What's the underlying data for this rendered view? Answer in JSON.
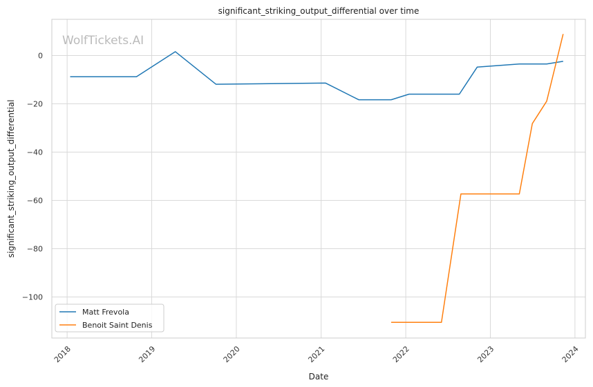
{
  "watermark": "WolfTickets.AI",
  "chart_data": {
    "type": "line",
    "title": "significant_striking_output_differential over time",
    "xlabel": "Date",
    "ylabel": "significant_striking_output_differential",
    "xlim": [
      "2017-10-27",
      "2024-02-15"
    ],
    "ylim": [
      -117,
      15
    ],
    "x_ticks": [
      "2018",
      "2019",
      "2020",
      "2021",
      "2022",
      "2023",
      "2024"
    ],
    "y_ticks": [
      0,
      -20,
      -40,
      -60,
      -80,
      -100
    ],
    "grid": true,
    "legend": "lower-left",
    "series": [
      {
        "name": "Matt Frevola",
        "color": "#1f77b4",
        "points": [
          {
            "x": "2018-01-14",
            "y": -8.8
          },
          {
            "x": "2018-10-27",
            "y": -8.8
          },
          {
            "x": "2019-04-13",
            "y": 1.6
          },
          {
            "x": "2019-10-05",
            "y": -11.9
          },
          {
            "x": "2021-01-20",
            "y": -11.4
          },
          {
            "x": "2021-06-12",
            "y": -18.3
          },
          {
            "x": "2021-10-30",
            "y": -18.3
          },
          {
            "x": "2022-01-15",
            "y": -16.0
          },
          {
            "x": "2022-08-20",
            "y": -16.0
          },
          {
            "x": "2022-11-05",
            "y": -4.8
          },
          {
            "x": "2023-05-06",
            "y": -3.5
          },
          {
            "x": "2023-09-01",
            "y": -3.5
          },
          {
            "x": "2023-11-11",
            "y": -2.4
          }
        ]
      },
      {
        "name": "Benoit Saint Denis",
        "color": "#ff7f0e",
        "points": [
          {
            "x": "2021-10-30",
            "y": -110.5
          },
          {
            "x": "2022-06-04",
            "y": -110.5
          },
          {
            "x": "2022-08-27",
            "y": -57.3
          },
          {
            "x": "2023-05-06",
            "y": -57.3
          },
          {
            "x": "2023-07-01",
            "y": -28.2
          },
          {
            "x": "2023-09-01",
            "y": -18.9
          },
          {
            "x": "2023-11-11",
            "y": 8.9
          }
        ]
      }
    ]
  }
}
